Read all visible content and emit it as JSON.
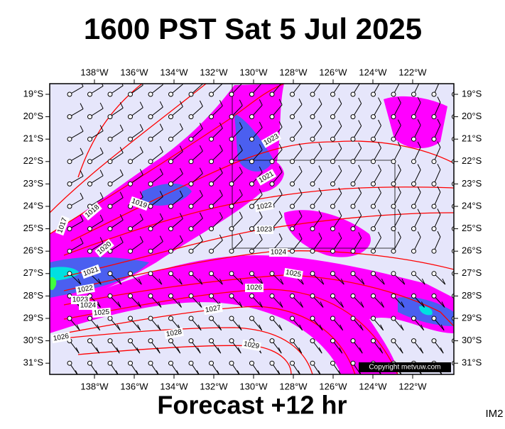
{
  "header": {
    "title": "1600 PST Sat 5 Jul 2025"
  },
  "map": {
    "longitude_labels": [
      "138°W",
      "136°W",
      "134°W",
      "132°W",
      "130°W",
      "128°W",
      "126°W",
      "124°W",
      "122°W"
    ],
    "latitude_labels": [
      "19°S",
      "20°S",
      "21°S",
      "22°S",
      "23°S",
      "24°S",
      "25°S",
      "26°S",
      "27°S",
      "28°S",
      "29°S",
      "30°S",
      "31°S"
    ],
    "isobar_labels": [
      "1023",
      "1021",
      "1022",
      "1023",
      "1024",
      "1025",
      "1026",
      "1027",
      "1028",
      "1029",
      "1019",
      "1018",
      "1017",
      "1020",
      "1021",
      "1022",
      "1023",
      "1024",
      "1025",
      "1026"
    ],
    "copyright": "Copyright metvuw.com"
  },
  "footer": {
    "forecast": "Forecast +12 hr",
    "code": "IM2"
  }
}
